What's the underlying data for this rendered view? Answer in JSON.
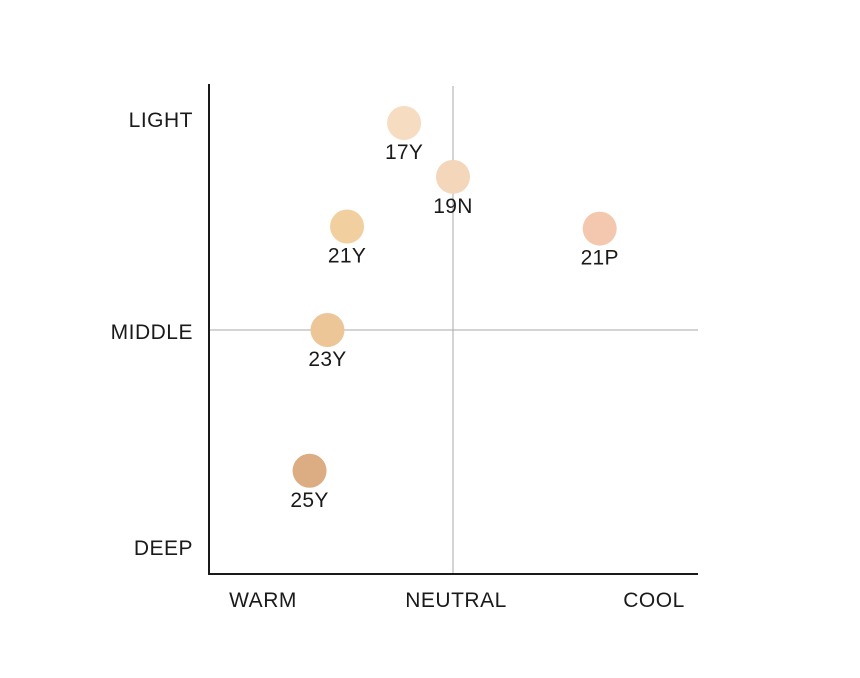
{
  "chart_data": {
    "type": "scatter",
    "title": "",
    "xlabel": "",
    "ylabel": "",
    "x_categories": [
      "WARM",
      "NEUTRAL",
      "COOL"
    ],
    "y_categories": [
      "DEEP",
      "MIDDLE",
      "LIGHT"
    ],
    "xlim": [
      -1.5,
      1.5
    ],
    "ylim": [
      -1.1,
      1.1
    ],
    "grid": false,
    "reference_lines": {
      "x": 0,
      "y": 0
    },
    "points": [
      {
        "label": "17Y",
        "x": -0.3,
        "y": 1.0,
        "color": "#f6dcc0"
      },
      {
        "label": "19N",
        "x": 0.0,
        "y": 0.74,
        "color": "#f4d6bb"
      },
      {
        "label": "21Y",
        "x": -0.65,
        "y": 0.5,
        "color": "#f2cf9f"
      },
      {
        "label": "21P",
        "x": 0.9,
        "y": 0.49,
        "color": "#f3c8ae"
      },
      {
        "label": "23Y",
        "x": -0.77,
        "y": 0.0,
        "color": "#ecc697"
      },
      {
        "label": "25Y",
        "x": -0.88,
        "y": -0.68,
        "color": "#dcac82"
      }
    ]
  }
}
